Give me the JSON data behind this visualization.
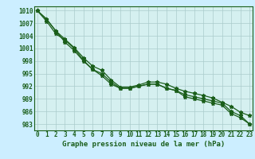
{
  "title": "Graphe pression niveau de la mer (hPa)",
  "fig_bg_color": "#cceeff",
  "plot_bg_color": "#d5f0f0",
  "grid_color": "#aacccc",
  "line_color": "#1a5e1a",
  "x_labels": [
    "0",
    "1",
    "2",
    "3",
    "4",
    "5",
    "6",
    "7",
    "8",
    "9",
    "10",
    "11",
    "12",
    "13",
    "14",
    "15",
    "16",
    "17",
    "18",
    "19",
    "20",
    "21",
    "22",
    "23"
  ],
  "ylim": [
    981.5,
    1011.0
  ],
  "yticks": [
    983,
    986,
    989,
    992,
    995,
    998,
    1001,
    1004,
    1007,
    1010
  ],
  "series1": [
    1010,
    1008.0,
    1005.2,
    1003.2,
    1001.2,
    998.8,
    996.8,
    995.8,
    993.5,
    991.8,
    991.8,
    992.3,
    993.0,
    993.0,
    992.5,
    991.5,
    990.8,
    990.3,
    989.8,
    989.2,
    988.2,
    987.2,
    985.8,
    985.0
  ],
  "series2": [
    1010,
    1008.0,
    1005.2,
    1002.5,
    1000.5,
    998.0,
    996.0,
    994.5,
    992.5,
    991.5,
    991.5,
    992.0,
    992.5,
    992.5,
    991.5,
    991.0,
    990.0,
    989.5,
    989.0,
    988.5,
    988.0,
    986.0,
    985.0,
    983.0
  ],
  "series3": [
    1010,
    1007.5,
    1004.5,
    1003.0,
    1001.0,
    998.2,
    996.0,
    995.0,
    993.0,
    991.5,
    991.5,
    992.0,
    992.5,
    992.5,
    991.5,
    991.0,
    989.5,
    989.0,
    988.5,
    988.0,
    987.5,
    985.5,
    984.5,
    983.0
  ],
  "tick_fontsize": 5.5,
  "xlabel_fontsize": 6.5,
  "marker_size": 3.5,
  "linewidth": 0.9
}
